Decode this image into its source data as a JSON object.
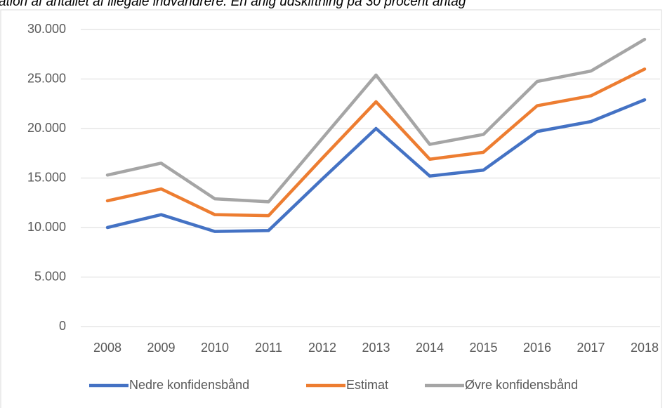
{
  "chart_data": {
    "type": "line",
    "title": "ation af antallet af illegale indvandrere. En årlig udskiftning på 30 procent antag",
    "categories": [
      "2008",
      "2009",
      "2010",
      "2011",
      "2012",
      "2013",
      "2014",
      "2015",
      "2016",
      "2017",
      "2018"
    ],
    "series": [
      {
        "name": "Nedre konfidensbånd",
        "color": "#4472c4",
        "values": [
          10000,
          11300,
          9600,
          9700,
          14900,
          20000,
          15200,
          15800,
          19700,
          20700,
          22900
        ]
      },
      {
        "name": "Estimat",
        "color": "#ed7d31",
        "values": [
          12700,
          13900,
          11300,
          11200,
          17000,
          22700,
          16900,
          17600,
          22300,
          23300,
          26000
        ]
      },
      {
        "name": "Øvre konfidensbånd",
        "color": "#a5a5a5",
        "values": [
          15300,
          16500,
          12900,
          12600,
          19000,
          25400,
          18400,
          19400,
          24750,
          25800,
          29000
        ]
      }
    ],
    "ylim": [
      0,
      30000
    ],
    "yticks": [
      0,
      {
        "value": 5000,
        "label": "5.000"
      },
      {
        "value": 10000,
        "label": "10.000"
      },
      {
        "value": 15000,
        "label": "15.000"
      },
      {
        "value": 20000,
        "label": "20.000"
      },
      {
        "value": 25000,
        "label": "25.000"
      },
      {
        "value": 30000,
        "label": "30.000"
      }
    ],
    "grid": true,
    "legend": "bottom"
  }
}
